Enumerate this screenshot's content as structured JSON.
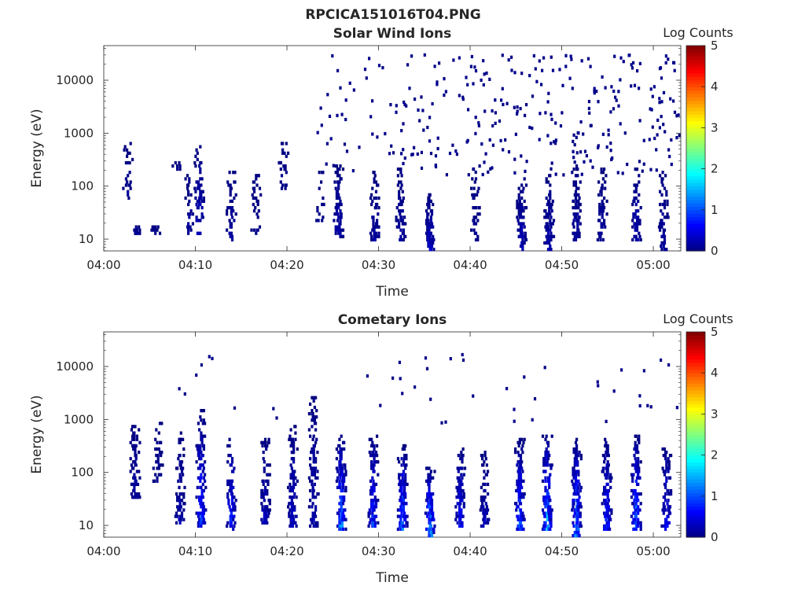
{
  "figure_title": "RPCICA151016T04.PNG",
  "chart_data": [
    {
      "type": "heatmap",
      "title": "Solar Wind Ions",
      "xlabel": "Time",
      "ylabel": "Energy (eV)",
      "x_ticks": [
        "04:00",
        "04:10",
        "04:20",
        "04:30",
        "04:40",
        "04:50",
        "05:00"
      ],
      "x_tick_minutes": [
        0,
        10,
        20,
        30,
        40,
        50,
        60
      ],
      "xlim_minutes": [
        0,
        63
      ],
      "y_ticks": [
        "10",
        "100",
        "1000",
        "10000"
      ],
      "y_tick_values": [
        10,
        100,
        1000,
        10000
      ],
      "ylim": [
        6,
        45000
      ],
      "y_scale": "log",
      "colorbar": {
        "label": "Log Counts",
        "ticks": [
          "0",
          "1",
          "2",
          "3",
          "4",
          "5"
        ],
        "range": [
          0,
          5
        ],
        "colormap": "jet"
      },
      "bursts": [
        {
          "t": 2.5,
          "emin": 50,
          "emax": 700,
          "density": 0.35,
          "level": 0.1
        },
        {
          "t": 3.5,
          "emin": 12,
          "emax": 18,
          "density": 0.6,
          "level": 0.1
        },
        {
          "t": 5.5,
          "emin": 12,
          "emax": 18,
          "density": 0.6,
          "level": 0.1
        },
        {
          "t": 7.8,
          "emin": 180,
          "emax": 320,
          "density": 0.5,
          "level": 0.1
        },
        {
          "t": 9.2,
          "emin": 12,
          "emax": 150,
          "density": 0.4,
          "level": 0.2
        },
        {
          "t": 10.3,
          "emin": 12,
          "emax": 600,
          "density": 0.45,
          "level": 0.4
        },
        {
          "t": 13.8,
          "emin": 8,
          "emax": 180,
          "density": 0.5,
          "level": 0.2
        },
        {
          "t": 16.5,
          "emin": 12,
          "emax": 160,
          "density": 0.35,
          "level": 0.1
        },
        {
          "t": 19.5,
          "emin": 80,
          "emax": 600,
          "density": 0.4,
          "level": 0.1
        },
        {
          "t": 23.5,
          "emin": 20,
          "emax": 200,
          "density": 0.35,
          "level": 0.1
        },
        {
          "t": 25.5,
          "emin": 10,
          "emax": 250,
          "density": 0.65,
          "level": 0.3
        },
        {
          "t": 29.5,
          "emin": 8,
          "emax": 200,
          "density": 0.6,
          "level": 0.2
        },
        {
          "t": 32.3,
          "emin": 8,
          "emax": 220,
          "density": 0.55,
          "level": 0.2
        },
        {
          "t": 35.5,
          "emin": 6,
          "emax": 70,
          "density": 0.8,
          "level": 0.4
        },
        {
          "t": 40.5,
          "emin": 8,
          "emax": 250,
          "density": 0.4,
          "level": 0.1
        },
        {
          "t": 45.5,
          "emin": 6,
          "emax": 150,
          "density": 0.75,
          "level": 0.3
        },
        {
          "t": 48.5,
          "emin": 6,
          "emax": 150,
          "density": 0.7,
          "level": 0.3
        },
        {
          "t": 51.5,
          "emin": 8,
          "emax": 250,
          "density": 0.6,
          "level": 0.2
        },
        {
          "t": 54.3,
          "emin": 8,
          "emax": 200,
          "density": 0.55,
          "level": 0.2
        },
        {
          "t": 58,
          "emin": 8,
          "emax": 250,
          "density": 0.6,
          "level": 0.3
        },
        {
          "t": 61,
          "emin": 6,
          "emax": 200,
          "density": 0.55,
          "level": 0.2
        }
      ],
      "scatter": {
        "tmin": 22,
        "tmax": 63,
        "emin": 150,
        "emax": 30000,
        "count": 320
      }
    },
    {
      "type": "heatmap",
      "title": "Cometary Ions",
      "xlabel": "Time",
      "ylabel": "Energy (eV)",
      "x_ticks": [
        "04:00",
        "04:10",
        "04:20",
        "04:30",
        "04:40",
        "04:50",
        "05:00"
      ],
      "x_tick_minutes": [
        0,
        10,
        20,
        30,
        40,
        50,
        60
      ],
      "xlim_minutes": [
        0,
        63
      ],
      "y_ticks": [
        "10",
        "100",
        "1000",
        "10000"
      ],
      "y_tick_values": [
        10,
        100,
        1000,
        10000
      ],
      "ylim": [
        6,
        45000
      ],
      "y_scale": "log",
      "colorbar": {
        "label": "Log Counts",
        "ticks": [
          "0",
          "1",
          "2",
          "3",
          "4",
          "5"
        ],
        "range": [
          0,
          5
        ],
        "colormap": "jet"
      },
      "bursts": [
        {
          "t": 3.3,
          "emin": 30,
          "emax": 1000,
          "density": 0.6,
          "level": 0.2
        },
        {
          "t": 5.8,
          "emin": 60,
          "emax": 900,
          "density": 0.4,
          "level": 0.1
        },
        {
          "t": 8.2,
          "emin": 10,
          "emax": 600,
          "density": 0.55,
          "level": 0.3
        },
        {
          "t": 10.5,
          "emin": 8,
          "emax": 1500,
          "density": 0.7,
          "level": 1.1
        },
        {
          "t": 13.8,
          "emin": 7,
          "emax": 500,
          "density": 0.6,
          "level": 0.9
        },
        {
          "t": 17.5,
          "emin": 10,
          "emax": 400,
          "density": 0.6,
          "level": 0.4
        },
        {
          "t": 20.5,
          "emin": 8,
          "emax": 700,
          "density": 0.7,
          "level": 0.5
        },
        {
          "t": 22.8,
          "emin": 8,
          "emax": 2500,
          "density": 0.55,
          "level": 0.3
        },
        {
          "t": 25.8,
          "emin": 7,
          "emax": 500,
          "density": 0.85,
          "level": 1.5
        },
        {
          "t": 29.3,
          "emin": 8,
          "emax": 500,
          "density": 0.7,
          "level": 1.0
        },
        {
          "t": 32.5,
          "emin": 7,
          "emax": 300,
          "density": 0.8,
          "level": 1.4
        },
        {
          "t": 35.5,
          "emin": 6,
          "emax": 120,
          "density": 0.85,
          "level": 1.8
        },
        {
          "t": 38.8,
          "emin": 8,
          "emax": 300,
          "density": 0.65,
          "level": 0.8
        },
        {
          "t": 41.5,
          "emin": 8,
          "emax": 250,
          "density": 0.55,
          "level": 0.4
        },
        {
          "t": 45.3,
          "emin": 7,
          "emax": 400,
          "density": 0.8,
          "level": 1.2
        },
        {
          "t": 48.3,
          "emin": 7,
          "emax": 500,
          "density": 0.85,
          "level": 1.6
        },
        {
          "t": 51.5,
          "emin": 6,
          "emax": 400,
          "density": 0.85,
          "level": 1.6
        },
        {
          "t": 54.8,
          "emin": 7,
          "emax": 400,
          "density": 0.75,
          "level": 1.0
        },
        {
          "t": 58,
          "emin": 7,
          "emax": 500,
          "density": 0.8,
          "level": 1.4
        },
        {
          "t": 61.3,
          "emin": 7,
          "emax": 350,
          "density": 0.7,
          "level": 0.8
        }
      ],
      "scatter": {
        "tmin": 2,
        "tmax": 63,
        "emin": 800,
        "emax": 16000,
        "count": 45
      }
    }
  ]
}
